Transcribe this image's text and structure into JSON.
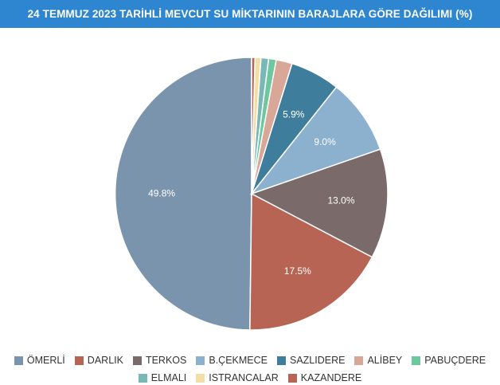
{
  "header": {
    "title": "24 TEMMUZ 2023 TARİHLİ MEVCUT SU MİKTARININ BARAJLARA GÖRE DAĞILIMI (%)"
  },
  "chart_data": {
    "type": "pie",
    "title": "24 TEMMUZ 2023 TARİHLİ MEVCUT SU MİKTARININ BARAJLARA GÖRE DAĞILIMI (%)",
    "legend_position": "bottom",
    "slices": [
      {
        "label": "ÖMERLİ",
        "value": 49.8,
        "value_label": "49.8%",
        "color": "#7a94ad"
      },
      {
        "label": "DARLIK",
        "value": 17.5,
        "value_label": "17.5%",
        "color": "#b86454"
      },
      {
        "label": "TERKOS",
        "value": 13.0,
        "value_label": "13.0%",
        "color": "#7b6a6a"
      },
      {
        "label": "B.ÇEKMECE",
        "value": 9.0,
        "value_label": "9.0%",
        "color": "#8cb1cf"
      },
      {
        "label": "SAZLIDERE",
        "value": 5.9,
        "value_label": "5.9%",
        "color": "#3e7d9c"
      },
      {
        "label": "ALİBEY",
        "value": 1.9,
        "value_label": "",
        "color": "#d9a797"
      },
      {
        "label": "PABUÇDERE",
        "value": 0.9,
        "value_label": "",
        "color": "#6dc8a0"
      },
      {
        "label": "ELMALI",
        "value": 0.9,
        "value_label": "",
        "color": "#7ab8b8"
      },
      {
        "label": "ISTRANCALAR",
        "value": 0.7,
        "value_label": "",
        "color": "#f3dfa6"
      },
      {
        "label": "KAZANDERE",
        "value": 0.4,
        "value_label": "",
        "color": "#b86454"
      }
    ]
  }
}
